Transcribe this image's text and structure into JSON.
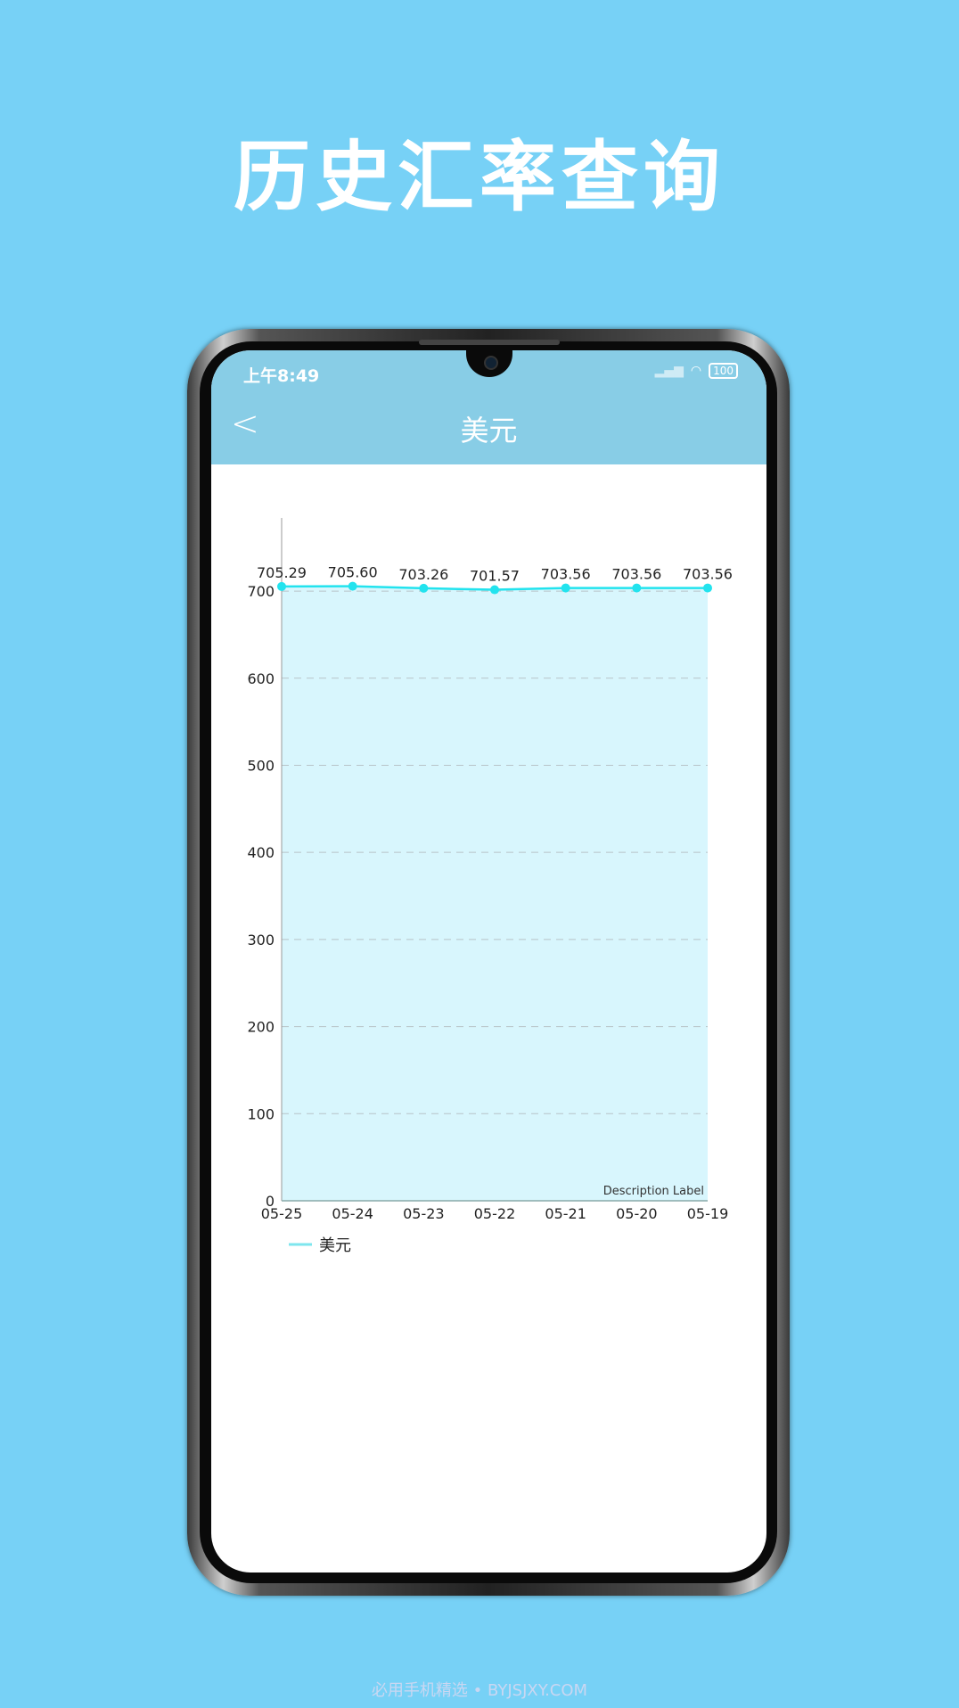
{
  "headline": "历史汇率查询",
  "status_bar": {
    "time": "上午8:49",
    "battery": "100",
    "icons": [
      "signal-icon",
      "wifi-icon",
      "battery-icon"
    ]
  },
  "header": {
    "title": "美元",
    "back_icon": "chevron-left-icon"
  },
  "footer": "必用手机精选 • BYJSJXY.COM",
  "colors": {
    "background": "#77d1f6",
    "header": "#88cde6",
    "series": "#22e3ee",
    "fill": "#d8f6fd"
  },
  "chart_data": {
    "type": "area",
    "categories": [
      "05-25",
      "05-24",
      "05-23",
      "05-22",
      "05-21",
      "05-20",
      "05-19"
    ],
    "series": [
      {
        "name": "美元",
        "values": [
          705.29,
          705.6,
          703.26,
          701.57,
          703.56,
          703.56,
          703.56
        ]
      }
    ],
    "data_labels": [
      "705.29",
      "705.60",
      "703.26",
      "701.57",
      "703.56",
      "703.56",
      "703.56"
    ],
    "yticks": [
      0,
      100,
      200,
      300,
      400,
      500,
      600,
      700
    ],
    "ylim": [
      0,
      784
    ],
    "grid": "horizontal dashed",
    "description": "Description Label",
    "legend": "bottom-left"
  }
}
